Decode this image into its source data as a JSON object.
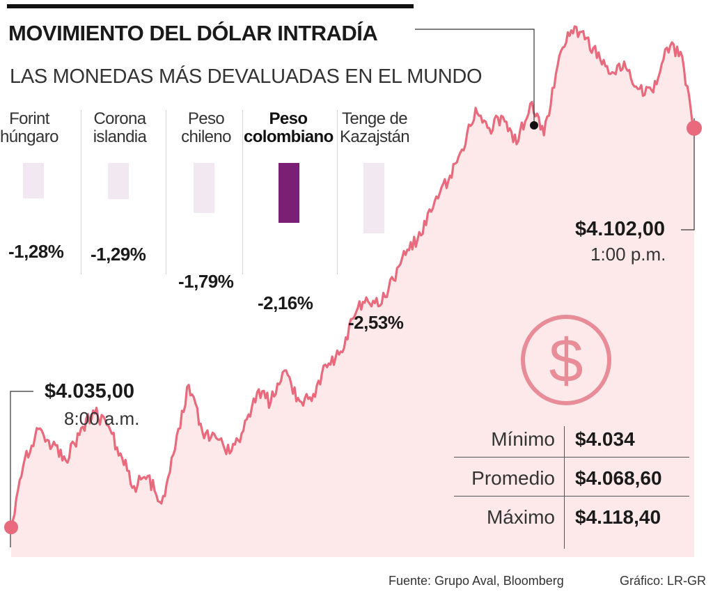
{
  "header": {
    "title": "MOVIMIENTO DEL DÓLAR INTRADÍA",
    "subtitle": "LAS MONEDAS MÁS DEVALUADAS EN EL MUNDO"
  },
  "currencies": [
    {
      "line1": "Forint",
      "line2": "húngaro",
      "value_label": "-1,28%",
      "value": -1.28,
      "highlight": false
    },
    {
      "line1": "Corona",
      "line2": "islandia",
      "value_label": "-1,29%",
      "value": -1.29,
      "highlight": false
    },
    {
      "line1": "Peso",
      "line2": "chileno",
      "value_label": "-1,79%",
      "value": -1.79,
      "highlight": false
    },
    {
      "line1": "Peso",
      "line2": "colombiano",
      "value_label": "-2,16%",
      "value": -2.16,
      "highlight": true
    },
    {
      "line1": "Tenge de",
      "line2": "Kazajstán",
      "value_label": "-2,53%",
      "value": -2.53,
      "highlight": false
    }
  ],
  "annotations": {
    "open": {
      "price": "$4.035,00",
      "time": "8:00 a.m."
    },
    "close": {
      "price": "$4.102,00",
      "time": "1:00 p.m."
    }
  },
  "stats": [
    {
      "label": "Mínimo",
      "value": "$4.034"
    },
    {
      "label": "Promedio",
      "value": "$4.068,60"
    },
    {
      "label": "Máximo",
      "value": "$4.118,40"
    }
  ],
  "footer": {
    "source": "Fuente: Grupo Aval, Bloomberg",
    "credit": "Gráfico: LR-GR"
  },
  "colors": {
    "line": "#e86a7c",
    "area": "#fde9ea",
    "highlight_bar": "#7a1f74",
    "bar": "#f1e8f2",
    "icon": "#e88c98"
  },
  "icon": "dollar-circle-icon",
  "chart_data": {
    "type": "area",
    "x_start": "8:00 a.m.",
    "x_end": "1:00 p.m.",
    "ylim": [
      4030,
      4120
    ],
    "grid": false,
    "x": [
      0,
      0.02,
      0.04,
      0.06,
      0.08,
      0.1,
      0.12,
      0.14,
      0.16,
      0.18,
      0.2,
      0.22,
      0.24,
      0.26,
      0.28,
      0.3,
      0.32,
      0.34,
      0.36,
      0.38,
      0.4,
      0.42,
      0.44,
      0.46,
      0.48,
      0.5,
      0.52,
      0.54,
      0.56,
      0.58,
      0.6,
      0.62,
      0.64,
      0.66,
      0.68,
      0.7,
      0.72,
      0.74,
      0.76,
      0.78,
      0.8,
      0.82,
      0.84,
      0.86,
      0.88,
      0.9,
      0.92,
      0.94,
      0.96,
      0.98,
      1.0
    ],
    "values": [
      4035.0,
      4046.5,
      4051.5,
      4048.6,
      4046.2,
      4050.5,
      4054.6,
      4052.2,
      4047.4,
      4041.9,
      4043.6,
      4039.0,
      4048.1,
      4058.9,
      4051.0,
      4050.0,
      4047.4,
      4051.2,
      4057.6,
      4056.0,
      4061.3,
      4056.7,
      4056.2,
      4062.3,
      4064.0,
      4070.0,
      4073.6,
      4072.2,
      4076.5,
      4081.6,
      4084.0,
      4089.7,
      4093.1,
      4098.4,
      4105.4,
      4102.0,
      4103.9,
      4099.3,
      4106.1,
      4100.8,
      4112.5,
      4118.4,
      4116.9,
      4114.7,
      4111.4,
      4112.1,
      4108.6,
      4108.0,
      4115.5,
      4114.8,
      4102.0
    ]
  }
}
